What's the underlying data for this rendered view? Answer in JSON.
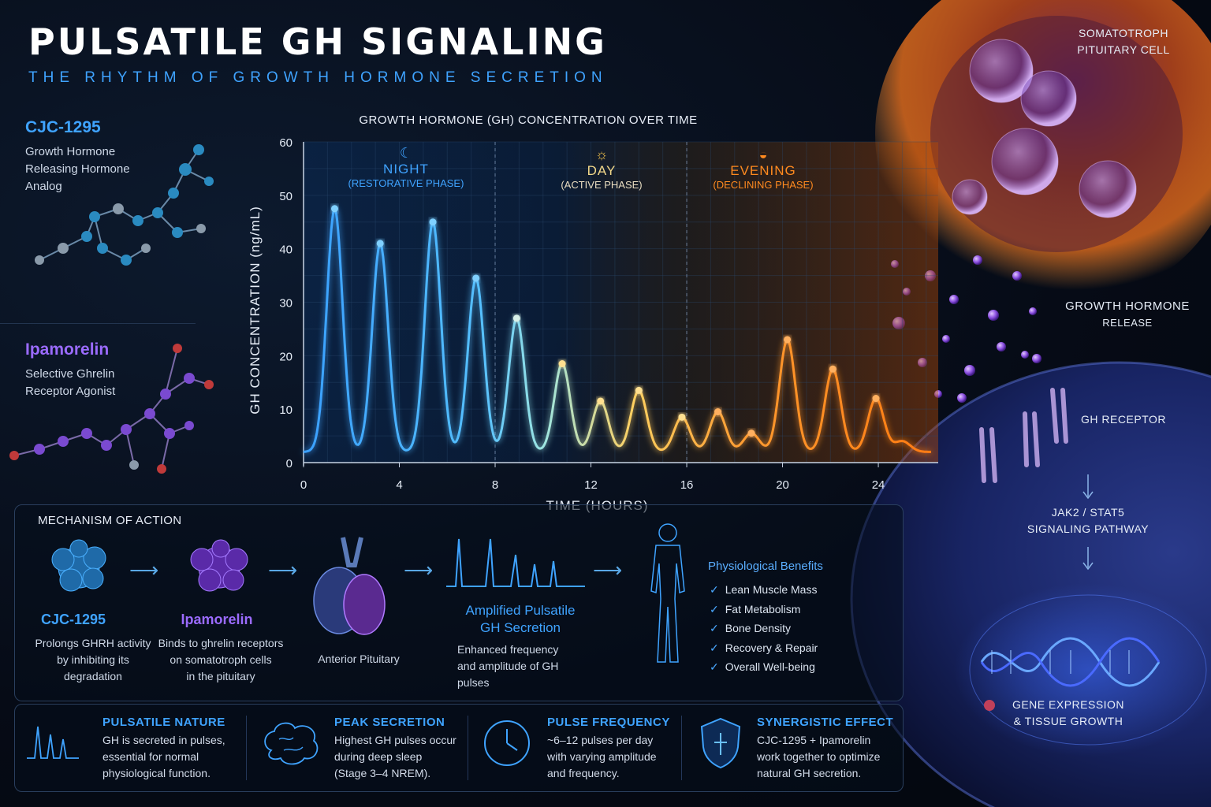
{
  "header": {
    "title": "PULSATILE GH SIGNALING",
    "subtitle": "THE RHYTHM OF GROWTH HORMONE SECRETION"
  },
  "peptides": [
    {
      "name": "CJC-1295",
      "desc": [
        "Growth Hormone",
        "Releasing Hormone",
        "Analog"
      ],
      "color": "#3fa3ff"
    },
    {
      "name": "Ipamorelin",
      "desc": [
        "Selective Ghrelin",
        "Receptor Agonist"
      ],
      "color": "#9b6bff"
    }
  ],
  "chart_data": {
    "type": "line",
    "title": "GROWTH HORMONE (GH) CONCENTRATION OVER TIME",
    "xlabel": "TIME (HOURS)",
    "ylabel": "GH CONCENTRATION (ng/mL)",
    "xlim": [
      0,
      26.5
    ],
    "ylim": [
      0,
      60
    ],
    "x_ticks": [
      0,
      4,
      8,
      12,
      16,
      20,
      24
    ],
    "y_ticks": [
      0,
      10,
      20,
      30,
      40,
      50,
      60
    ],
    "grid": true,
    "baseline": 2,
    "phase_dividers": [
      8,
      16
    ],
    "phases": [
      {
        "name": "NIGHT",
        "sub": "(RESTORATIVE PHASE)",
        "icon": "moon-icon",
        "color": "#3fa3ff"
      },
      {
        "name": "DAY",
        "sub": "(ACTIVE PHASE)",
        "icon": "sun-icon",
        "color": "#f2c14a"
      },
      {
        "name": "EVENING",
        "sub": "(DECLINING PHASE)",
        "icon": "sunset-icon",
        "color": "#ff8a1f"
      }
    ],
    "pulses": [
      {
        "t": 1.3,
        "peak": 47.5
      },
      {
        "t": 3.2,
        "peak": 41
      },
      {
        "t": 5.4,
        "peak": 45
      },
      {
        "t": 7.2,
        "peak": 34.5
      },
      {
        "t": 8.9,
        "peak": 27
      },
      {
        "t": 10.8,
        "peak": 18.5
      },
      {
        "t": 12.4,
        "peak": 11.5
      },
      {
        "t": 14.0,
        "peak": 13.5
      },
      {
        "t": 15.8,
        "peak": 8.5
      },
      {
        "t": 17.3,
        "peak": 9.5
      },
      {
        "t": 18.7,
        "peak": 5.5
      },
      {
        "t": 20.2,
        "peak": 23
      },
      {
        "t": 22.1,
        "peak": 17.5
      },
      {
        "t": 23.9,
        "peak": 12
      },
      {
        "t": 25.0,
        "peak": 4
      }
    ],
    "colors": {
      "night": "#3aa0ff",
      "dawn": "#7fe0ff",
      "day": "#ffd060",
      "evening": "#ff7a10"
    }
  },
  "right_panel": {
    "cell_label": [
      "SOMATOTROPH",
      "PITUITARY CELL"
    ],
    "release_label": [
      "GROWTH HORMONE",
      "RELEASE"
    ],
    "receptor_label": "GH RECEPTOR",
    "pathway_label": [
      "JAK2 / STAT5",
      "SIGNALING PATHWAY"
    ],
    "gene_label": [
      "GENE EXPRESSION",
      "& TISSUE GROWTH"
    ]
  },
  "mechanism": {
    "title": "MECHANISM OF ACTION",
    "steps": [
      {
        "name": "CJC-1295",
        "desc": [
          "Prolongs GHRH activity",
          "by inhibiting its",
          "degradation"
        ],
        "color": "#3fa3ff"
      },
      {
        "name": "Ipamorelin",
        "desc": [
          "Binds to ghrelin receptors",
          "on somatotroph cells",
          "in the pituitary"
        ],
        "color": "#9b6bff"
      },
      {
        "name": "",
        "desc": [
          "Anterior Pituitary"
        ],
        "color": "#dfe8f5"
      },
      {
        "name": "Amplified Pulsatile\nGH Secretion",
        "desc": [
          "Enhanced frequency",
          "and amplitude of GH",
          "pulses"
        ],
        "color": "#3fa3ff"
      }
    ],
    "benefits_title": "Physiological Benefits",
    "benefits": [
      "Lean Muscle Mass",
      "Fat Metabolism",
      "Bone Density",
      "Recovery & Repair",
      "Overall Well-being"
    ]
  },
  "info": [
    {
      "title": "PULSATILE NATURE",
      "text": [
        "GH is secreted in pulses,",
        "essential for normal",
        "physiological function."
      ],
      "icon": "pulse-icon"
    },
    {
      "title": "PEAK SECRETION",
      "text": [
        "Highest GH pulses occur",
        "during deep sleep",
        "(Stage 3–4 NREM)."
      ],
      "icon": "brain-icon"
    },
    {
      "title": "PULSE FREQUENCY",
      "text": [
        "~6–12 pulses per day",
        "with varying amplitude",
        "and frequency."
      ],
      "icon": "clock-icon"
    },
    {
      "title": "SYNERGISTIC EFFECT",
      "text": [
        "CJC-1295 + Ipamorelin",
        "work together to optimize",
        "natural GH secretion."
      ],
      "icon": "shield-icon"
    }
  ]
}
